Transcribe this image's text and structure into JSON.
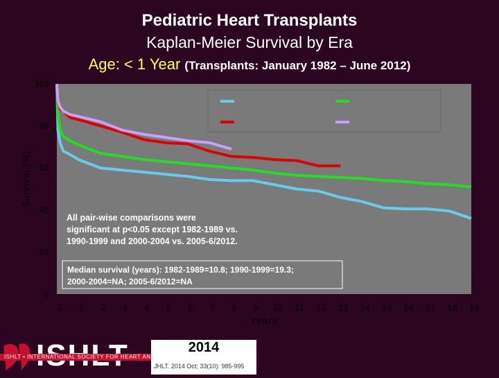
{
  "header": {
    "title": "Pediatric Heart Transplants",
    "subtitle": "Kaplan-Meier Survival by Era",
    "age_label": "Age: < 1 Year",
    "range_label": "(Transplants: January 1982 – June 2012)"
  },
  "chart_data": {
    "type": "line",
    "xlabel": "Years",
    "ylabel": "Survival (%)",
    "xlim": [
      0,
      19
    ],
    "ylim": [
      0,
      100
    ],
    "xticks": [
      "0",
      "1",
      "2",
      "3",
      "4",
      "5",
      "6",
      "7",
      "8",
      "9",
      "10",
      "11",
      "12",
      "13",
      "14",
      "15",
      "16",
      "17",
      "18",
      "19"
    ],
    "yticks": [
      "0",
      "20",
      "40",
      "60",
      "80",
      "100"
    ],
    "legend_placement": "top-right",
    "grid": false,
    "series": [
      {
        "color": "#66ccee",
        "x": [
          0,
          0.05,
          0.15,
          0.3,
          0.5,
          1,
          1.5,
          2,
          3,
          4,
          5,
          6,
          7,
          8,
          9,
          10,
          11,
          12,
          13,
          14,
          15,
          16,
          17,
          18,
          19
        ],
        "y": [
          100,
          78,
          72,
          68,
          67,
          64,
          62,
          60,
          59,
          58,
          57,
          56,
          54.5,
          54,
          54,
          52,
          50,
          49,
          46,
          44,
          41,
          40.5,
          40.5,
          39.5,
          36
        ]
      },
      {
        "color": "#22dd22",
        "x": [
          0,
          0.05,
          0.15,
          0.3,
          0.6,
          1,
          2,
          3,
          4,
          5,
          6,
          7,
          8,
          9,
          10,
          11,
          12,
          13,
          14,
          15,
          16,
          17,
          18,
          19
        ],
        "y": [
          100,
          85,
          78,
          75,
          73,
          71,
          67,
          65.5,
          64,
          63,
          62,
          61,
          60,
          59,
          57.5,
          56.5,
          56,
          55.5,
          55,
          54,
          53.5,
          52.5,
          52,
          51
        ]
      },
      {
        "color": "#dd0000",
        "x": [
          0,
          0.05,
          0.15,
          0.3,
          0.6,
          1,
          2,
          3,
          4,
          5,
          6,
          7,
          8,
          9,
          10,
          11,
          12,
          13
        ],
        "y": [
          100,
          92,
          88,
          87,
          84,
          83,
          80,
          77,
          73.5,
          72,
          71.5,
          68,
          65.5,
          65,
          64,
          63.5,
          61,
          61
        ]
      },
      {
        "color": "#c8a0ff",
        "x": [
          0,
          0.05,
          0.15,
          0.3,
          0.6,
          1,
          2,
          3,
          4,
          5,
          6,
          7,
          7.5,
          8
        ],
        "y": [
          100,
          92,
          89,
          87,
          85.5,
          84.5,
          82,
          78,
          76,
          74.5,
          73,
          72,
          70.5,
          69
        ]
      }
    ],
    "annotations": [
      "All pair-wise comparisons were",
      "significant at p<0.05 except 1982-1989 vs.",
      "1990-1999 and 2000-2004 vs. 2005-6/2012.",
      "Median survival (years): 1982-1989=10.8; 1990-1999=19.3;",
      "2000-2004=NA; 2005-6/2012=NA"
    ]
  },
  "colors": {
    "background": "#2c0621",
    "plot_background": "#7a7a7a",
    "axis_text": "#000000"
  },
  "footer": {
    "logo_text": "ISHLT",
    "org_name": "ISHLT • INTERNATIONAL SOCIETY FOR HEART AND LUNG TRANSPLANTATION",
    "year": "2014",
    "citation": "JHLT. 2014 Oct; 33(10): 985-995"
  }
}
